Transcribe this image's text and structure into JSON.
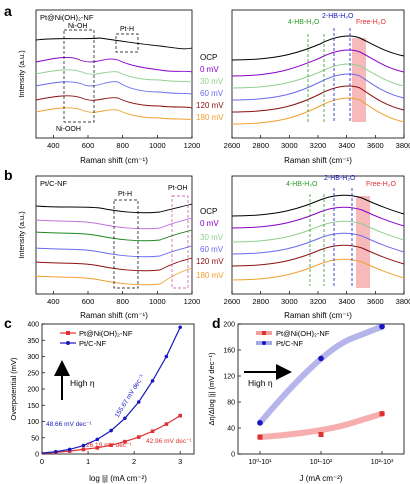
{
  "panels": [
    {
      "letter": "a",
      "sample": "Pt@Ni(OH)₂-NF"
    },
    {
      "letter": "b",
      "sample": "Pt/C-NF"
    },
    {
      "letter": "c"
    },
    {
      "letter": "d"
    }
  ],
  "chart_data": [
    {
      "id": "a-left",
      "type": "line",
      "panel": "a",
      "xlabel": "Raman shift (cm⁻¹)",
      "ylabel": "Intensity (a.u.)",
      "xlim": [
        300,
        1200
      ],
      "xticks": [
        400,
        600,
        800,
        1000,
        1200
      ],
      "annotations": [
        "Ni-OH",
        "Pt-H",
        "Ni-OOH"
      ],
      "series_order": [
        "OCP",
        "0 mV",
        "30 mV",
        "60 mV",
        "120 mV",
        "180 mV"
      ]
    },
    {
      "id": "a-right",
      "type": "line",
      "panel": "a",
      "xlabel": "Raman shift (cm⁻¹)",
      "xlim": [
        2600,
        3800
      ],
      "xticks": [
        2600,
        2800,
        3000,
        3200,
        3400,
        3600,
        3800
      ],
      "annotations": [
        "4-HB-H₂O",
        "2-HB-H₂O",
        "Free-H₂O"
      ],
      "series": [
        {
          "name": "OCP",
          "color": "#000000"
        },
        {
          "name": "0 mV",
          "color": "#8a00c8"
        },
        {
          "name": "30 mV",
          "color": "#90d090"
        },
        {
          "name": "60 mV",
          "color": "#6a6af0"
        },
        {
          "name": "120 mV",
          "color": "#8b1010"
        },
        {
          "name": "180 mV",
          "color": "#f0a030"
        }
      ]
    },
    {
      "id": "b-left",
      "type": "line",
      "panel": "b",
      "xlabel": "Raman shift (cm⁻¹)",
      "ylabel": "Intensity (a.u.)",
      "xlim": [
        300,
        1200
      ],
      "xticks": [
        400,
        600,
        800,
        1000,
        1200
      ],
      "annotations": [
        "Pt-H",
        "Pt-OH"
      ],
      "series_order": [
        "OCP",
        "0 mV",
        "30 mV",
        "60 mV",
        "120 mV",
        "180 mV"
      ]
    },
    {
      "id": "b-right",
      "type": "line",
      "panel": "b",
      "xlabel": "Raman shift (cm⁻¹)",
      "xlim": [
        2600,
        3800
      ],
      "xticks": [
        2600,
        2800,
        3000,
        3200,
        3400,
        3600,
        3800
      ],
      "annotations": [
        "4-HB-H₂O",
        "2-HB-H₂O",
        "Free-H₂O"
      ],
      "series": [
        {
          "name": "OCP",
          "color": "#000000"
        },
        {
          "name": "0 mV",
          "color": "#8a00c8"
        },
        {
          "name": "30 mV",
          "color": "#90d090"
        },
        {
          "name": "60 mV",
          "color": "#6a6af0"
        },
        {
          "name": "120 mV",
          "color": "#8b1010"
        },
        {
          "name": "180 mV",
          "color": "#f0a030"
        }
      ]
    },
    {
      "id": "c",
      "type": "line",
      "panel": "c",
      "xlabel": "log |j| (mA cm⁻²)",
      "ylabel": "Overpotential (mV)",
      "xlim": [
        0,
        3.3
      ],
      "ylim": [
        0,
        400
      ],
      "xticks": [
        0,
        1,
        2,
        3
      ],
      "yticks": [
        0,
        50,
        100,
        150,
        200,
        250,
        300,
        350,
        400
      ],
      "arrow_label": "High η",
      "series": [
        {
          "name": "Pt@Ni(OH)₂-NF",
          "color": "#e03030",
          "x": [
            0,
            0.3,
            0.6,
            0.9,
            1.2,
            1.5,
            1.8,
            2.1,
            2.4,
            2.7,
            3.0
          ],
          "y": [
            2,
            5,
            9,
            14,
            19,
            27,
            38,
            52,
            70,
            92,
            118
          ]
        },
        {
          "name": "Pt/C-NF",
          "color": "#1818c0",
          "x": [
            0,
            0.3,
            0.6,
            0.9,
            1.2,
            1.5,
            1.8,
            2.1,
            2.4,
            2.7,
            3.0
          ],
          "y": [
            3,
            7,
            14,
            26,
            45,
            72,
            110,
            160,
            225,
            300,
            390
          ]
        }
      ],
      "slope_labels": [
        {
          "text": "48.66 mV dec⁻¹",
          "color": "#1818c0"
        },
        {
          "text": "155.67 mV dec⁻¹",
          "color": "#1818c0"
        },
        {
          "text": "26.19 mV dec⁻¹",
          "color": "#e03030"
        },
        {
          "text": "42.96 mV dec⁻¹",
          "color": "#e03030"
        }
      ]
    },
    {
      "id": "d",
      "type": "scatter",
      "panel": "d",
      "xlabel": "J (mA cm⁻²)",
      "ylabel": "Δη/Δlog |j| (mV dec⁻¹)",
      "categories": [
        "10⁰-10¹",
        "10¹-10²",
        "10²-10³"
      ],
      "ylim": [
        0,
        200
      ],
      "yticks": [
        0,
        40,
        80,
        120,
        160,
        200
      ],
      "arrow_label": "High η",
      "series": [
        {
          "name": "Pt@Ni(OH)₂-NF",
          "color": "#e03030",
          "values": [
            26,
            30,
            62
          ]
        },
        {
          "name": "Pt/C-NF",
          "color": "#1818c0",
          "values": [
            48,
            147,
            196
          ]
        }
      ]
    }
  ]
}
